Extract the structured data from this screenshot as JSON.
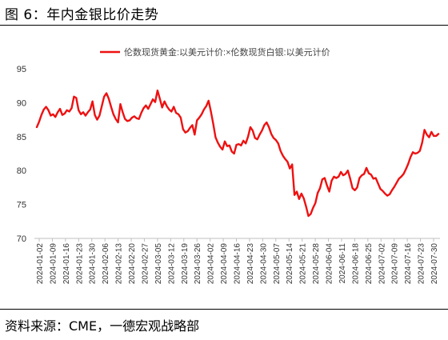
{
  "figure_title": "图 6：年内金银比价走势",
  "source": "资料来源：CME，一德宏观战略部",
  "chart_data": {
    "type": "line",
    "title": "",
    "legend_position": "top",
    "grid": false,
    "ylim": [
      70,
      95
    ],
    "yticks": [
      "95",
      "90",
      "85",
      "80",
      "75",
      "70"
    ],
    "xtick_labels": [
      "2024-01-02",
      "2024-01-09",
      "2024-01-16",
      "2024-01-23",
      "2024-01-30",
      "2024-02-06",
      "2024-02-13",
      "2024-02-20",
      "2024-02-27",
      "2024-03-05",
      "2024-03-12",
      "2024-03-19",
      "2024-03-26",
      "2024-04-02",
      "2024-04-09",
      "2024-04-16",
      "2024-04-23",
      "2024-04-30",
      "2024-05-07",
      "2024-05-14",
      "2024-05-21",
      "2024-05-28",
      "2024-06-04",
      "2024-06-11",
      "2024-06-18",
      "2024-06-25",
      "2024-07-02",
      "2024-07-09",
      "2024-07-16",
      "2024-07-23",
      "2024-07-30"
    ],
    "series": [
      {
        "name": "伦数现货黄金:以美元计价:×伦数现货白银:以美元计价",
        "color": "#ee1111",
        "values": [
          86.4,
          87.2,
          88.2,
          89.0,
          89.4,
          88.9,
          88.1,
          88.3,
          87.9,
          88.6,
          89.1,
          88.2,
          88.4,
          88.9,
          88.7,
          89.2,
          90.9,
          90.7,
          88.9,
          88.3,
          88.6,
          88.1,
          88.6,
          89.0,
          90.2,
          88.2,
          87.5,
          88.1,
          89.5,
          90.9,
          91.4,
          90.6,
          89.4,
          88.3,
          87.6,
          87.1,
          89.8,
          88.6,
          87.6,
          87.3,
          87.4,
          87.8,
          88.0,
          87.7,
          87.6,
          88.5,
          89.2,
          89.6,
          89.1,
          89.8,
          90.5,
          90.1,
          91.8,
          90.6,
          89.3,
          90.2,
          89.5,
          89.0,
          88.7,
          89.4,
          88.5,
          88.3,
          87.8,
          86.1,
          85.6,
          85.8,
          86.3,
          86.7,
          85.3,
          87.4,
          87.8,
          88.3,
          89.0,
          89.5,
          90.3,
          88.7,
          86.9,
          84.9,
          84.1,
          83.5,
          83.1,
          84.3,
          83.6,
          83.7,
          82.8,
          82.5,
          83.8,
          83.9,
          83.7,
          84.4,
          84.0,
          85.0,
          86.4,
          85.9,
          84.8,
          84.6,
          85.3,
          85.9,
          86.7,
          87.1,
          86.4,
          85.4,
          84.8,
          84.5,
          84.0,
          82.9,
          82.2,
          81.7,
          81.3,
          80.3,
          80.9,
          76.4,
          76.9,
          75.8,
          76.6,
          75.9,
          74.7,
          73.3,
          73.6,
          74.5,
          75.2,
          76.7,
          77.4,
          78.7,
          78.9,
          77.8,
          76.9,
          78.5,
          79.1,
          78.9,
          79.1,
          79.8,
          79.3,
          79.5,
          80.0,
          78.8,
          77.4,
          77.1,
          77.5,
          78.9,
          79.3,
          79.5,
          80.4,
          79.6,
          79.4,
          78.8,
          78.9,
          78.1,
          77.3,
          77.0,
          76.6,
          76.3,
          76.5,
          77.1,
          77.6,
          78.2,
          78.8,
          79.1,
          79.5,
          80.2,
          81.0,
          82.0,
          82.7,
          82.5,
          82.6,
          82.9,
          84.1,
          86.0,
          85.3,
          84.9,
          85.7,
          85.1,
          85.1,
          85.4
        ]
      }
    ]
  }
}
